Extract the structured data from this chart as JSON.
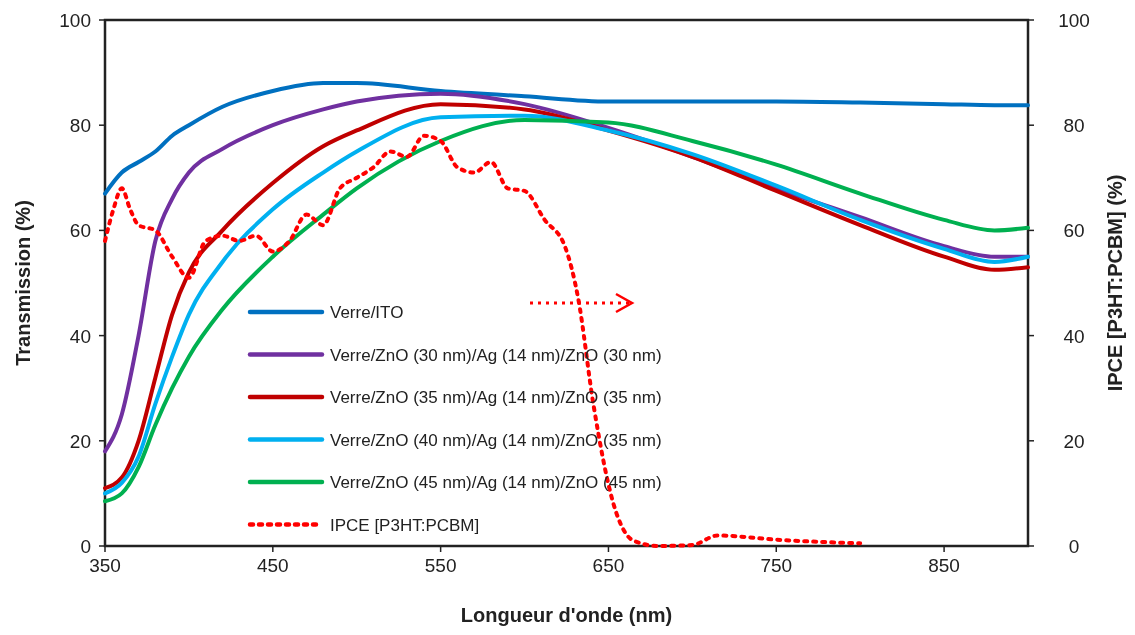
{
  "chart_data": {
    "type": "line",
    "xlabel": "Longueur d'onde (nm)",
    "ylabel": "Transmission (%)",
    "y2label": "IPCE [P3HT:PCBM] (%)",
    "xlim": [
      350,
      900
    ],
    "xticks": [
      350,
      450,
      550,
      650,
      750,
      850
    ],
    "ylim": [
      0,
      100
    ],
    "yticks": [
      0,
      20,
      40,
      60,
      80,
      100
    ],
    "y2lim": [
      0,
      100
    ],
    "y2ticks": [
      0,
      20,
      40,
      60,
      80,
      100
    ],
    "grid": false,
    "legend": "bottom left",
    "line_style": "solid",
    "marker": "none",
    "x": [
      350,
      360,
      370,
      380,
      390,
      400,
      420,
      450,
      480,
      500,
      550,
      600,
      650,
      700,
      750,
      800,
      850,
      880,
      900
    ],
    "series": [
      {
        "name": "Verre/ITO",
        "color": "#0070c0",
        "values": [
          67,
          71,
          73,
          75,
          78,
          80,
          83.5,
          86.5,
          88,
          88,
          86.5,
          85.5,
          84.5,
          84.5,
          84.5,
          84.3,
          84,
          83.8,
          83.8
        ]
      },
      {
        "name": "Verre/ZnO (30 nm)/Ag (14 nm)/ZnO (30 nm)",
        "color": "#7030a0",
        "values": [
          18,
          25,
          40,
          58,
          66,
          71,
          75.5,
          80,
          83,
          84.5,
          86,
          84,
          79.5,
          74,
          68,
          62.5,
          57,
          55,
          55
        ]
      },
      {
        "name": "Verre/ZnO (35 nm)/Ag (14 nm)/ZnO (35 nm)",
        "color": "#c00000",
        "values": [
          11,
          13,
          20,
          32,
          44,
          52,
          60,
          69,
          76,
          79,
          84,
          83,
          79,
          74,
          67.5,
          61,
          55,
          52.5,
          53
        ]
      },
      {
        "name": "Verre/ZnO (40 nm)/Ag (14 nm)/ZnO (35 nm)",
        "color": "#00b0f0",
        "values": [
          10,
          12,
          17,
          27,
          36,
          44,
          54,
          64,
          71,
          75,
          81.5,
          81.8,
          79,
          74.5,
          68.5,
          62,
          56.5,
          54,
          55
        ]
      },
      {
        "name": "Verre/ZnO (45 nm)/Ag (14 nm)/ZnO (45 nm)",
        "color": "#00b050",
        "values": [
          8.5,
          10,
          15,
          23,
          30,
          36,
          45,
          55,
          63,
          68,
          77,
          81,
          80.5,
          77,
          72.5,
          67,
          62,
          60,
          60.5
        ]
      },
      {
        "name": "IPCE [P3HT:PCBM]",
        "color": "#ff0000",
        "axis": "y2",
        "line_style": "dotted",
        "x": [
          350,
          355,
          360,
          365,
          370,
          380,
          390,
          400,
          410,
          420,
          430,
          440,
          450,
          460,
          470,
          480,
          490,
          500,
          510,
          520,
          530,
          540,
          550,
          560,
          570,
          580,
          590,
          600,
          612,
          624,
          632,
          641,
          653,
          665,
          680,
          700,
          715,
          750,
          800
        ],
        "values": [
          58,
          64,
          68,
          64,
          61,
          60,
          55,
          51,
          58,
          59,
          58,
          59,
          56,
          58,
          63,
          61,
          68,
          70,
          72,
          75,
          74,
          78,
          77,
          72,
          71,
          73,
          68,
          67.5,
          62,
          57,
          47,
          27,
          8,
          1,
          0,
          0.2,
          2,
          1.2,
          0.5
        ]
      }
    ]
  }
}
